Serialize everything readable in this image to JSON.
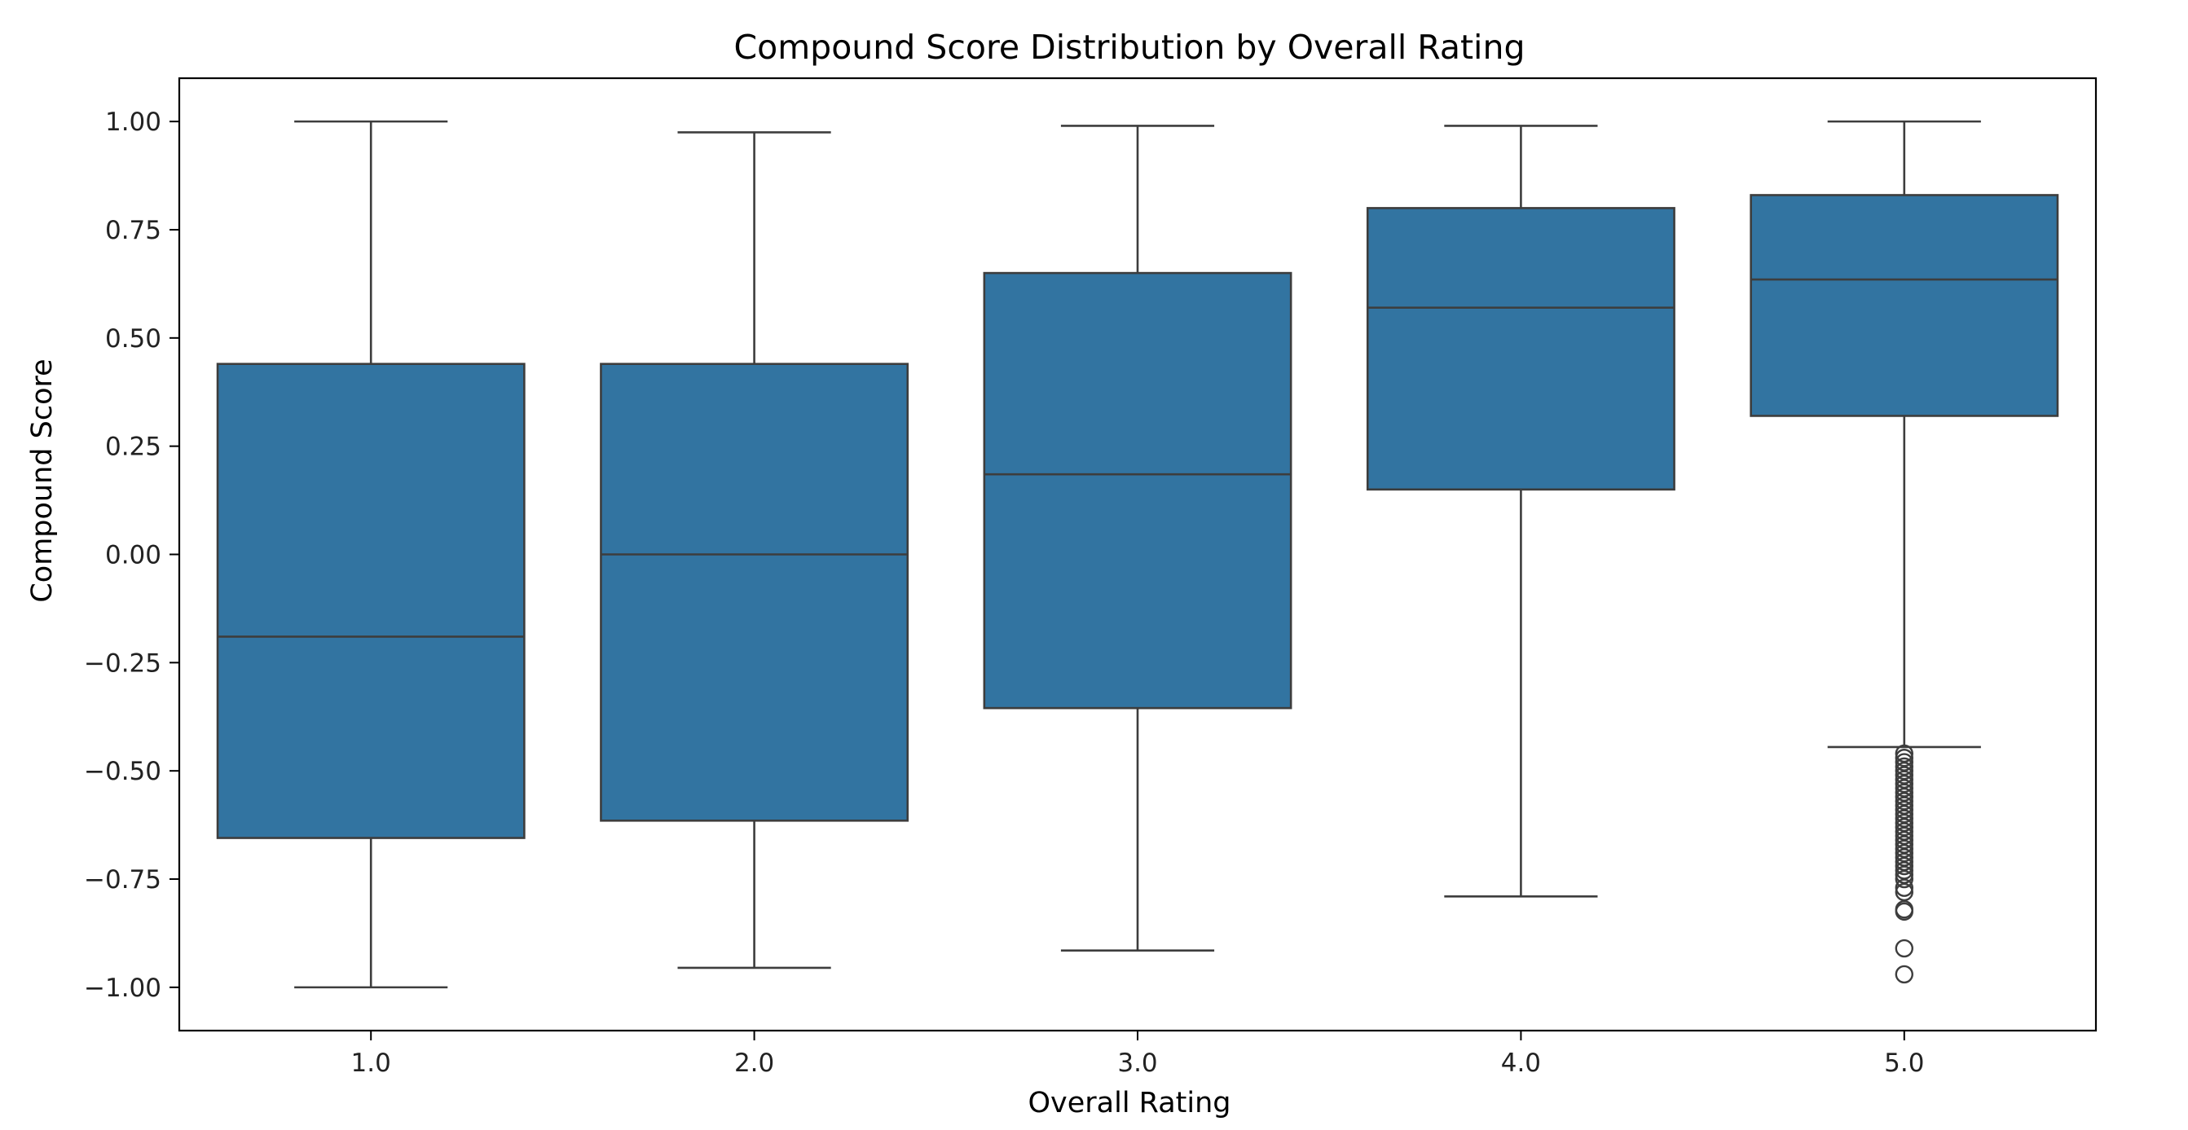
{
  "chart_data": {
    "type": "box",
    "title": "Compound Score Distribution by Overall Rating",
    "xlabel": "Overall Rating",
    "ylabel": "Compound Score",
    "categories": [
      "1.0",
      "2.0",
      "3.0",
      "4.0",
      "5.0"
    ],
    "ylim": [
      -1.1,
      1.1
    ],
    "yticks": [
      1.0,
      0.75,
      0.5,
      0.25,
      0.0,
      -0.25,
      -0.5,
      -0.75,
      -1.0
    ],
    "ytick_labels": [
      "1.00",
      "0.75",
      "0.50",
      "0.25",
      "0.00",
      "−0.25",
      "−0.50",
      "−0.75",
      "−1.00"
    ],
    "grid": false,
    "legend": "none",
    "boxes": [
      {
        "category": "1.0",
        "whisker_low": -1.0,
        "q1": -0.655,
        "median": -0.19,
        "q3": 0.44,
        "whisker_high": 1.0,
        "outliers": []
      },
      {
        "category": "2.0",
        "whisker_low": -0.955,
        "q1": -0.615,
        "median": 0.0,
        "q3": 0.44,
        "whisker_high": 0.975,
        "outliers": []
      },
      {
        "category": "3.0",
        "whisker_low": -0.915,
        "q1": -0.355,
        "median": 0.185,
        "q3": 0.65,
        "whisker_high": 0.99,
        "outliers": []
      },
      {
        "category": "4.0",
        "whisker_low": -0.79,
        "q1": 0.15,
        "median": 0.57,
        "q3": 0.8,
        "whisker_high": 0.99,
        "outliers": []
      },
      {
        "category": "5.0",
        "whisker_low": -0.445,
        "q1": 0.32,
        "median": 0.635,
        "q3": 0.83,
        "whisker_high": 1.0,
        "outliers": [
          -0.46,
          -0.47,
          -0.48,
          -0.49,
          -0.5,
          -0.51,
          -0.52,
          -0.53,
          -0.54,
          -0.55,
          -0.56,
          -0.57,
          -0.58,
          -0.59,
          -0.6,
          -0.61,
          -0.62,
          -0.63,
          -0.64,
          -0.65,
          -0.66,
          -0.67,
          -0.68,
          -0.69,
          -0.7,
          -0.71,
          -0.72,
          -0.73,
          -0.74,
          -0.75,
          -0.77,
          -0.78,
          -0.82,
          -0.825,
          -0.91,
          -0.97
        ]
      }
    ],
    "colors": {
      "box_fill": "#3274a1",
      "line": "#3d3d3d",
      "frame": "#000000",
      "outlier_edge": "#3d3d3d"
    }
  }
}
